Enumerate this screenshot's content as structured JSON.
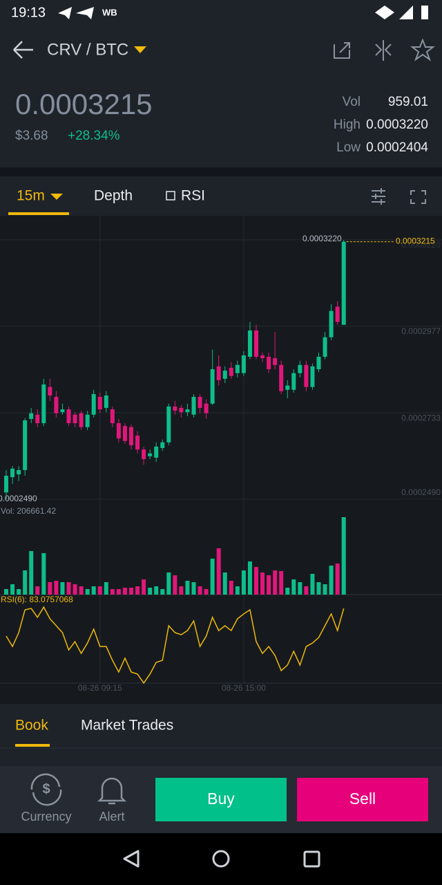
{
  "status_bar": {
    "time": "19:13",
    "carrier": "WB"
  },
  "header": {
    "pair": "CRV / BTC"
  },
  "ticker": {
    "price": "0.0003215",
    "fiat": "$3.68",
    "change": "+28.34%",
    "vol_label": "Vol",
    "vol": "959.01",
    "high_label": "High",
    "high": "0.0003220",
    "low_label": "Low",
    "low": "0.0002404"
  },
  "chart_tabs": {
    "interval": "15m",
    "depth": "Depth",
    "indicator": "RSI"
  },
  "chart_data": {
    "type": "candlestick",
    "categories": [
      null,
      null,
      null,
      null,
      null,
      null,
      null,
      null,
      null,
      null,
      null,
      null,
      null,
      null,
      null,
      "08-26 09:15",
      null,
      null,
      null,
      null,
      null,
      null,
      null,
      null,
      null,
      null,
      null,
      null,
      null,
      null,
      null,
      null,
      null,
      null,
      null,
      null,
      null,
      null,
      "08-26 15:00",
      null,
      null,
      null,
      null,
      null,
      null,
      null,
      null,
      null,
      null,
      null,
      null,
      null,
      null,
      null,
      null
    ],
    "open": [
      0.0002509,
      0.0002552,
      0.000256,
      0.0002572,
      0.0002716,
      0.0002728,
      0.0002704,
      0.0002806,
      0.0002778,
      0.0002735,
      0.0002743,
      0.0002728,
      0.0002732,
      0.0002693,
      0.0002728,
      0.0002778,
      0.0002747,
      0.0002743,
      0.0002704,
      0.0002696,
      0.0002693,
      0.0002669,
      0.000263,
      0.0002611,
      0.0002607,
      0.0002634,
      0.000265,
      0.0002751,
      0.0002747,
      0.0002735,
      0.0002728,
      0.0002778,
      0.0002759,
      0.0002759,
      0.0002864,
      0.0002829,
      0.000286,
      0.0002845,
      0.0002845,
      0.0002891,
      0.0002965,
      0.0002895,
      0.0002891,
      0.0002887,
      0.0002868,
      0.0002798,
      0.0002798,
      0.0002845,
      0.0002868,
      0.0002806,
      0.0002856,
      0.0002891,
      0.0002946,
      0.0003032,
      0.0002981
    ],
    "high": [
      0.0002572,
      0.0002583,
      0.0002583,
      0.0002718,
      0.0002747,
      0.0002743,
      0.0002829,
      0.0002829,
      0.0002794,
      0.0002759,
      0.0002751,
      0.0002735,
      0.0002739,
      0.0002739,
      0.0002798,
      0.000279,
      0.0002794,
      0.0002751,
      0.0002716,
      0.0002704,
      0.00027,
      0.0002681,
      0.0002638,
      0.000263,
      0.000265,
      0.0002658,
      0.0002759,
      0.0002767,
      0.0002755,
      0.0002759,
      0.0002786,
      0.0002786,
      0.0002771,
      0.0002911,
      0.0002895,
      0.0002864,
      0.0002876,
      0.000288,
      0.0002907,
      0.0002989,
      0.0002981,
      0.0002903,
      0.0002903,
      0.0002961,
      0.000288,
      0.0002825,
      0.0002856,
      0.000288,
      0.000288,
      0.0002872,
      0.0002903,
      0.0002961,
      0.0003039,
      0.0003047,
      0.000322
    ],
    "low": [
      0.000249,
      0.0002533,
      0.0002541,
      0.0002556,
      0.0002704,
      0.0002693,
      0.0002696,
      0.0002767,
      0.000272,
      0.0002728,
      0.0002696,
      0.0002693,
      0.0002685,
      0.0002685,
      0.000272,
      0.0002732,
      0.0002735,
      0.0002693,
      0.000265,
      0.0002646,
      0.000263,
      0.0002619,
      0.0002587,
      0.0002603,
      0.0002595,
      0.0002626,
      0.0002642,
      0.0002728,
      0.000272,
      0.0002724,
      0.000272,
      0.0002732,
      0.0002716,
      0.0002755,
      0.000281,
      0.0002817,
      0.0002829,
      0.0002833,
      0.0002837,
      0.0002884,
      0.0002884,
      0.0002876,
      0.0002845,
      0.0002856,
      0.0002786,
      0.0002774,
      0.000279,
      0.0002833,
      0.0002794,
      0.0002798,
      0.0002848,
      0.0002884,
      0.0002938,
      0.0002981,
      0.0002981
    ],
    "close": [
      0.0002556,
      0.0002576,
      0.0002572,
      0.0002712,
      0.0002732,
      0.0002704,
      0.0002813,
      0.0002782,
      0.0002732,
      0.0002743,
      0.0002704,
      0.0002704,
      0.0002693,
      0.0002728,
      0.0002786,
      0.0002743,
      0.0002782,
      0.0002704,
      0.0002661,
      0.0002654,
      0.0002642,
      0.000263,
      0.0002603,
      0.0002619,
      0.0002638,
      0.000265,
      0.0002751,
      0.0002739,
      0.0002735,
      0.0002743,
      0.0002778,
      0.0002747,
      0.0002732,
      0.0002856,
      0.0002825,
      0.0002852,
      0.0002837,
      0.0002868,
      0.0002895,
      0.0002965,
      0.0002891,
      0.0002887,
      0.0002856,
      0.0002868,
      0.0002794,
      0.000281,
      0.0002845,
      0.0002868,
      0.0002806,
      0.0002864,
      0.0002891,
      0.0002946,
      0.000302,
      0.0002989,
      0.0003215
    ],
    "volume": [
      14762,
      27678,
      14762,
      64582,
      116248,
      22142,
      110712,
      33214,
      36904,
      33214,
      33214,
      27678,
      22142,
      14762,
      22142,
      22142,
      33214,
      14762,
      14762,
      18452,
      18452,
      22142,
      40594,
      18452,
      22142,
      14762,
      59046,
      51666,
      22142,
      36904,
      33214,
      22142,
      14762,
      95950,
      123628,
      59046,
      36904,
      22142,
      64582,
      88570,
      73808,
      59046,
      51666,
      64582,
      62737,
      18452,
      40594,
      33214,
      22142,
      55356,
      33214,
      27678,
      77498,
      83034,
      206661.42
    ],
    "volume_title": "Vol: 206661.42",
    "rsi": [
      57.5,
      47.9,
      60.7,
      81.8,
      83.1,
      74.8,
      84.3,
      73.5,
      67.1,
      60.7,
      44.7,
      52.4,
      41.5,
      51.1,
      63.9,
      47.9,
      47.9,
      35.1,
      24.3,
      37.1,
      24.3,
      22.4,
      14.1,
      22.4,
      33.2,
      35.1,
      67.1,
      60.7,
      58.8,
      62.6,
      71.6,
      47.9,
      57.5,
      74.8,
      62.6,
      67.1,
      62.6,
      73.5,
      78,
      81.8,
      52.4,
      41.5,
      47.9,
      39.6,
      25.6,
      30.7,
      43.5,
      30.7,
      47.9,
      51.1,
      56.2,
      67.1,
      78,
      62.6,
      83.0757068
    ],
    "rsi_title": "RSI(6): 83.0757068",
    "ylim": [
      0.000249,
      0.000322
    ],
    "yticks": [
      {
        "value": 0.000322,
        "label": "0.0003220"
      },
      0.0002977,
      0.0002733,
      {
        "value": 0.000249,
        "label": "0.0002490"
      }
    ],
    "max_label": {
      "value": 0.000322,
      "label": "0.0003220"
    },
    "min_label": {
      "value": 0.000249,
      "label": "0.0002490"
    },
    "last_price": 0.0003215,
    "up_color": "#0ebd8b",
    "down_color": "#e0177a",
    "rsi_color": "#f0b90b",
    "grid": true
  },
  "bottom_tabs": {
    "book": "Book",
    "trades": "Market Trades"
  },
  "actions": {
    "currency": "Currency",
    "alert": "Alert",
    "buy": "Buy",
    "sell": "Sell"
  }
}
